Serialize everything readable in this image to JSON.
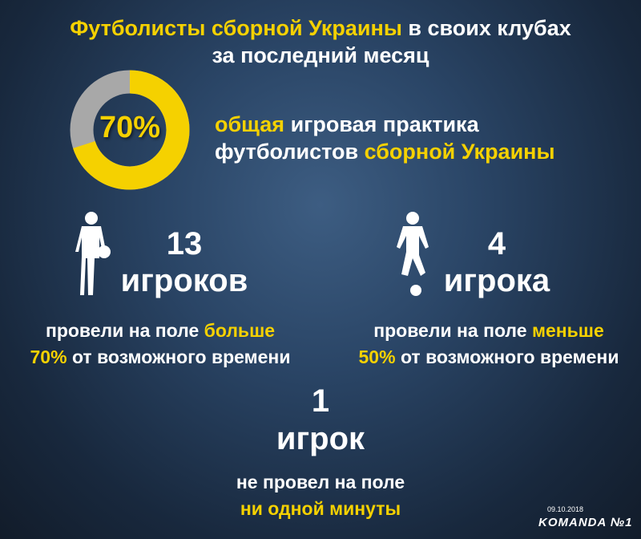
{
  "title": {
    "highlight": "Футболисты сборной Украины",
    "rest": " в своих клубах",
    "line2": "за последний месяц"
  },
  "donut": {
    "value": 70,
    "label": "70%",
    "colors": {
      "filled": "#f5d100",
      "rest": "#a8a8a8"
    }
  },
  "practice": {
    "w1": "общая",
    "w2": " игровая практика",
    "w3": "футболистов ",
    "w4": "сборной Украины"
  },
  "left": {
    "count": "13",
    "unit": "игроков",
    "d1": "провели на поле ",
    "d1h": "больше",
    "d2h": "70%",
    "d2": " от возможного времени"
  },
  "right": {
    "count": "4",
    "unit": "игрока",
    "d1": "провели на поле ",
    "d1h": "меньше",
    "d2h": "50%",
    "d2": " от возможного времени"
  },
  "bottom": {
    "count": "1",
    "unit": "игрок",
    "d1": "не провел на поле",
    "d2h": "ни одной минуты"
  },
  "footer": {
    "date": "09.10.2018",
    "logo": "KOMANDA №1"
  },
  "accent": "#f5d100"
}
